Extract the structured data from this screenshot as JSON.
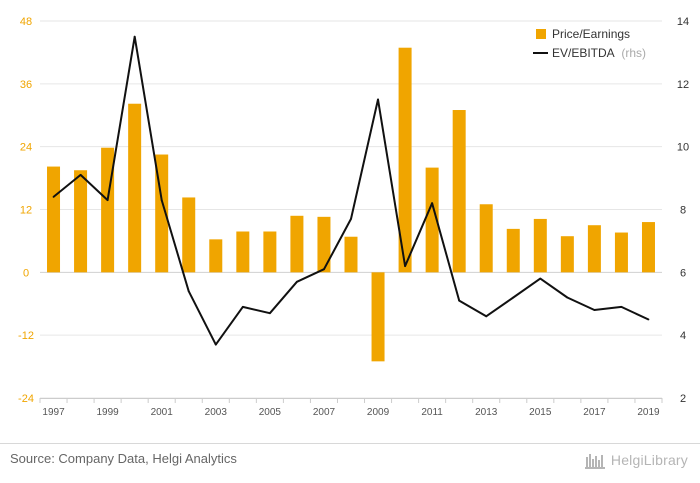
{
  "chart_data": {
    "type": "bar+line",
    "x": [
      "1997",
      "1998",
      "1999",
      "2000",
      "2001",
      "2002",
      "2003",
      "2004",
      "2005",
      "2006",
      "2007",
      "2008",
      "2009",
      "2010",
      "2011",
      "2012",
      "2013",
      "2014",
      "2015",
      "2016",
      "2017",
      "2018",
      "2019"
    ],
    "x_tick_labels": [
      "1997",
      "1999",
      "2001",
      "2003",
      "2005",
      "2007",
      "2009",
      "2011",
      "2013",
      "2015",
      "2017",
      "2019"
    ],
    "series": [
      {
        "name": "Price/Earnings",
        "type": "bar",
        "axis": "left",
        "color": "#f0a500",
        "values": [
          20.2,
          19.5,
          23.8,
          32.2,
          22.5,
          14.3,
          6.3,
          7.8,
          7.8,
          10.8,
          10.6,
          6.8,
          -17.0,
          42.9,
          20.0,
          31.0,
          13.0,
          8.3,
          10.2,
          6.9,
          9.0,
          7.6,
          9.6
        ]
      },
      {
        "name": "EV/EBITDA",
        "name_suffix": "(rhs)",
        "type": "line",
        "axis": "right",
        "color": "#111111",
        "values": [
          8.4,
          9.1,
          8.3,
          13.5,
          8.3,
          5.4,
          3.7,
          4.9,
          4.7,
          5.7,
          6.1,
          7.7,
          11.5,
          6.2,
          8.2,
          5.1,
          4.6,
          5.2,
          5.8,
          5.2,
          4.8,
          4.9,
          4.5
        ]
      }
    ],
    "left_axis": {
      "ylim": [
        -24,
        48
      ],
      "ticks": [
        "48",
        "36",
        "24",
        "12",
        "0",
        "-12",
        "-24"
      ],
      "color": "#f0a500"
    },
    "right_axis": {
      "ylim": [
        2,
        14
      ],
      "ticks": [
        "14",
        "12",
        "10",
        "8",
        "6",
        "4",
        "2"
      ]
    },
    "grid": true,
    "legend_position": "top-right"
  },
  "footer": {
    "source": "Source: Company Data, Helgi Analytics",
    "brand": "HelgiLibrary"
  }
}
